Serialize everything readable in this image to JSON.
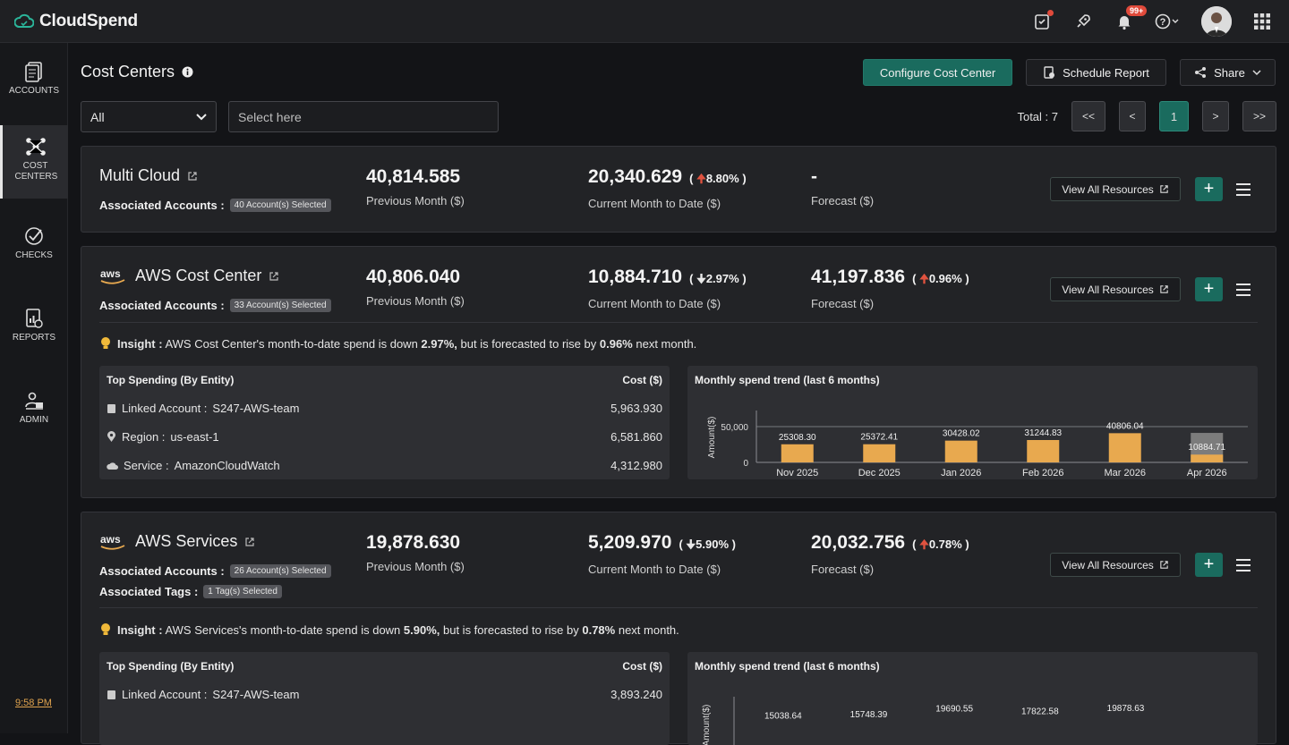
{
  "app": {
    "name": "CloudSpend",
    "notif_badge": "99+",
    "time": "9:58 PM"
  },
  "sidebar": {
    "items": [
      {
        "label": "ACCOUNTS"
      },
      {
        "label": "COST CENTERS"
      },
      {
        "label": "CHECKS"
      },
      {
        "label": "REPORTS"
      },
      {
        "label": "ADMIN"
      }
    ]
  },
  "header": {
    "title": "Cost Centers",
    "configure": "Configure Cost Center",
    "schedule": "Schedule Report",
    "share": "Share"
  },
  "filters": {
    "select_value": "All",
    "search_placeholder": "Select here",
    "total": "Total : 7"
  },
  "pager": {
    "first": "<<",
    "prev": "<",
    "current": "1",
    "next": ">",
    "last": ">>"
  },
  "common": {
    "assoc_label": "Associated Accounts :",
    "tags_label": "Associated Tags :",
    "prev_label": "Previous Month ($)",
    "cur_label": "Current Month to Date ($)",
    "fc_label": "Forecast ($)",
    "view_all": "View All Resources",
    "insight_label": "Insight :",
    "top_spending": "Top Spending  (By Entity)",
    "cost_header": "Cost ($)",
    "trend_title": "Monthly spend trend (last 6 months)",
    "linked_account": "Linked Account :",
    "region": "Region :",
    "service": "Service :",
    "y_axis_label": "Amount($)",
    "trend_y_ticks": [
      "50,000",
      "0"
    ]
  },
  "cards": [
    {
      "name": "Multi Cloud",
      "accounts": "40 Account(s) Selected",
      "prev": "40,814.585",
      "cur": "20,340.629",
      "cur_change": "8.80%",
      "forecast": "-"
    },
    {
      "name": "AWS Cost Center",
      "accounts": "33 Account(s) Selected",
      "prev": "40,806.040",
      "cur": "10,884.710",
      "cur_change": "2.97%",
      "forecast": "41,197.836",
      "fc_change": "0.96%",
      "insight_pre": "AWS Cost Center's month-to-date spend is down ",
      "insight_down": "2.97%,",
      "insight_mid": " but is forecasted to rise by ",
      "insight_up": "0.96%",
      "insight_post": " next month.",
      "top": [
        {
          "value": "S247-AWS-team",
          "cost": "5,963.930"
        },
        {
          "value": "us-east-1",
          "cost": "6,581.860"
        },
        {
          "value": "AmazonCloudWatch",
          "cost": "4,312.980"
        }
      ]
    },
    {
      "name": "AWS Services",
      "accounts": "26 Account(s) Selected",
      "tags": "1 Tag(s) Selected",
      "prev": "19,878.630",
      "cur": "5,209.970",
      "cur_change": "5.90%",
      "forecast": "20,032.756",
      "fc_change": "0.78%",
      "insight_pre": "AWS Services's month-to-date spend is down ",
      "insight_down": "5.90%,",
      "insight_mid": " but is forecasted to rise by ",
      "insight_up": "0.78%",
      "insight_post": " next month.",
      "top": [
        {
          "value": "S247-AWS-team",
          "cost": "3,893.240"
        }
      ]
    }
  ],
  "chart_data": [
    {
      "type": "bar",
      "title": "Monthly spend trend (last 6 months)",
      "ylabel": "Amount($)",
      "ylim": [
        0,
        70000
      ],
      "categories": [
        "Nov 2025",
        "Dec 2025",
        "Jan 2026",
        "Feb 2026",
        "Mar 2026",
        "Apr 2026"
      ],
      "values": [
        25308.3,
        25372.41,
        30428.02,
        31244.83,
        40806.04,
        10884.71
      ],
      "labels": [
        "25308.30",
        "25372.41",
        "30428.02",
        "31244.83",
        "40806.04",
        "10884.71"
      ],
      "forecast_last": 41197.836,
      "colors": {
        "bar": "#e8a94f",
        "forecast": "#8a8a8a"
      }
    },
    {
      "type": "bar",
      "title": "Monthly spend trend (last 6 months)",
      "ylabel": "Amount($)",
      "values": [
        15038.64,
        15748.39,
        19690.55,
        17822.58,
        19878.63
      ],
      "labels": [
        "15038.64",
        "15748.39",
        "19690.55",
        "17822.58",
        "19878.63"
      ]
    }
  ]
}
